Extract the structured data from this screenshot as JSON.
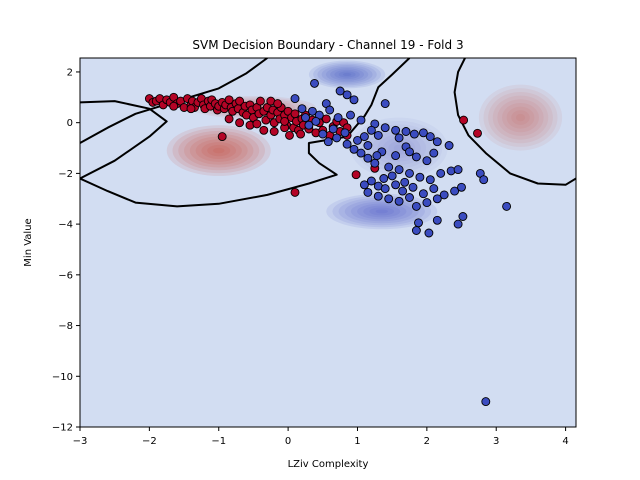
{
  "chart_data": {
    "type": "scatter",
    "title": "SVM Decision Boundary - Channel 19 - Fold 3",
    "xlabel": "LZiv Complexity",
    "ylabel": "Min Value",
    "xlim": [
      -3.0,
      4.15
    ],
    "ylim": [
      -12.0,
      2.55
    ],
    "x_ticks": [
      -3,
      -2,
      -1,
      0,
      1,
      2,
      3,
      4
    ],
    "y_ticks": [
      2,
      0,
      -2,
      -4,
      -6,
      -8,
      -10,
      -12
    ],
    "grid": false,
    "legend": "none",
    "background_color": "#d2ddf2",
    "colors": {
      "class_red": "#b40426",
      "class_blue": "#3b4cc0",
      "marker_edge": "#000000",
      "boundary": "#000000"
    },
    "decision_surface": {
      "red_regions": [
        {
          "cx": -1.0,
          "cy": -1.1,
          "sx": 0.75,
          "sy": 1.0,
          "strength": 0.85
        },
        {
          "cx": -0.5,
          "cy": 0.6,
          "sx": 0.9,
          "sy": 0.45,
          "strength": 0.55
        },
        {
          "cx": 3.35,
          "cy": 0.2,
          "sx": 0.6,
          "sy": 1.3,
          "strength": 0.5
        }
      ],
      "blue_regions": [
        {
          "cx": 0.85,
          "cy": 1.9,
          "sx": 0.55,
          "sy": 0.55,
          "strength": 0.8
        },
        {
          "cx": 1.35,
          "cy": -3.5,
          "sx": 0.8,
          "sy": 0.7,
          "strength": 0.75
        },
        {
          "cx": 1.6,
          "cy": -1.0,
          "sx": 0.7,
          "sy": 1.2,
          "strength": 0.35
        }
      ],
      "boundaries": [
        [
          [
            -3.0,
            -0.8
          ],
          [
            -2.6,
            -0.2
          ],
          [
            -2.2,
            0.35
          ],
          [
            -1.6,
            0.85
          ],
          [
            -1.0,
            1.35
          ],
          [
            -0.6,
            1.95
          ],
          [
            -0.3,
            2.55
          ]
        ],
        [
          [
            -3.0,
            0.8
          ],
          [
            -2.5,
            0.85
          ],
          [
            -2.0,
            0.55
          ],
          [
            -1.75,
            0.05
          ],
          [
            -2.0,
            -0.55
          ],
          [
            -2.5,
            -1.5
          ],
          [
            -3.0,
            -2.2
          ]
        ],
        [
          [
            -3.0,
            -2.2
          ],
          [
            -2.6,
            -2.7
          ],
          [
            -2.2,
            -3.15
          ],
          [
            -1.6,
            -3.3
          ],
          [
            -1.0,
            -3.2
          ],
          [
            -0.3,
            -2.85
          ],
          [
            0.3,
            -2.4
          ],
          [
            0.7,
            -2.05
          ],
          [
            0.45,
            -1.6
          ],
          [
            0.3,
            -1.2
          ],
          [
            0.3,
            -0.8
          ],
          [
            0.85,
            -0.55
          ],
          [
            1.1,
            0.25
          ],
          [
            1.2,
            0.7
          ],
          [
            1.3,
            1.4
          ],
          [
            1.5,
            1.9
          ],
          [
            1.75,
            2.55
          ]
        ],
        [
          [
            2.55,
            2.55
          ],
          [
            2.45,
            2.0
          ],
          [
            2.4,
            1.2
          ],
          [
            2.45,
            0.3
          ],
          [
            2.6,
            -0.5
          ],
          [
            2.85,
            -1.2
          ],
          [
            3.2,
            -2.0
          ],
          [
            3.6,
            -2.4
          ],
          [
            4.0,
            -2.45
          ],
          [
            4.15,
            -2.2
          ]
        ]
      ]
    },
    "series": [
      {
        "class": "red",
        "points": [
          [
            -2.0,
            0.95
          ],
          [
            -1.95,
            0.8
          ],
          [
            -1.9,
            0.85
          ],
          [
            -1.85,
            0.95
          ],
          [
            -1.8,
            0.7
          ],
          [
            -1.75,
            0.9
          ],
          [
            -1.7,
            0.8
          ],
          [
            -1.65,
            1.0
          ],
          [
            -1.6,
            0.75
          ],
          [
            -1.55,
            0.85
          ],
          [
            -1.5,
            0.6
          ],
          [
            -1.45,
            0.95
          ],
          [
            -1.4,
            0.7
          ],
          [
            -1.38,
            0.85
          ],
          [
            -1.35,
            0.6
          ],
          [
            -1.3,
            0.8
          ],
          [
            -1.25,
            0.95
          ],
          [
            -1.22,
            0.7
          ],
          [
            -1.2,
            0.55
          ],
          [
            -1.15,
            0.85
          ],
          [
            -1.12,
            0.65
          ],
          [
            -1.1,
            0.9
          ],
          [
            -1.05,
            0.75
          ],
          [
            -1.02,
            0.5
          ],
          [
            -1.0,
            0.65
          ],
          [
            -0.95,
            0.8
          ],
          [
            -0.92,
            0.55
          ],
          [
            -0.9,
            0.7
          ],
          [
            -0.85,
            0.9
          ],
          [
            -0.82,
            0.6
          ],
          [
            -0.8,
            0.45
          ],
          [
            -0.75,
            0.75
          ],
          [
            -0.72,
            0.55
          ],
          [
            -0.7,
            0.85
          ],
          [
            -0.65,
            0.4
          ],
          [
            -0.62,
            0.65
          ],
          [
            -0.6,
            0.3
          ],
          [
            -0.55,
            0.7
          ],
          [
            -0.52,
            0.5
          ],
          [
            -0.5,
            0.2
          ],
          [
            -0.45,
            0.6
          ],
          [
            -0.42,
            0.35
          ],
          [
            -0.4,
            0.85
          ],
          [
            -0.35,
            0.45
          ],
          [
            -0.32,
            0.1
          ],
          [
            -0.3,
            0.6
          ],
          [
            -0.25,
            0.3
          ],
          [
            -0.22,
            0.5
          ],
          [
            -0.2,
            0.0
          ],
          [
            -0.15,
            0.4
          ],
          [
            -0.12,
            0.15
          ],
          [
            -0.1,
            0.6
          ],
          [
            -0.05,
            0.3
          ],
          [
            -0.02,
            -0.1
          ],
          [
            0.0,
            0.45
          ],
          [
            0.05,
            0.2
          ],
          [
            0.08,
            -0.2
          ],
          [
            0.1,
            0.35
          ],
          [
            0.12,
            0.05
          ],
          [
            0.15,
            -0.3
          ],
          [
            0.2,
            0.15
          ],
          [
            0.22,
            -0.1
          ],
          [
            0.25,
            0.3
          ],
          [
            0.3,
            -0.25
          ],
          [
            0.35,
            0.1
          ],
          [
            0.4,
            -0.4
          ],
          [
            0.45,
            0.0
          ],
          [
            0.5,
            -0.3
          ],
          [
            0.55,
            0.15
          ],
          [
            0.6,
            -0.5
          ],
          [
            0.65,
            -0.15
          ],
          [
            0.7,
            0.05
          ],
          [
            0.75,
            -0.35
          ],
          [
            0.8,
            0.0
          ],
          [
            0.85,
            -0.2
          ],
          [
            -0.85,
            0.15
          ],
          [
            -0.55,
            -0.1
          ],
          [
            -0.35,
            -0.3
          ],
          [
            -0.2,
            -0.35
          ],
          [
            -0.05,
            -0.2
          ],
          [
            -0.7,
            0.0
          ],
          [
            -0.45,
            -0.05
          ],
          [
            -0.25,
            0.85
          ],
          [
            -0.15,
            0.75
          ],
          [
            -1.4,
            0.55
          ],
          [
            -1.65,
            0.65
          ],
          [
            -0.05,
            0.05
          ],
          [
            0.02,
            -0.5
          ],
          [
            0.18,
            -0.45
          ],
          [
            -0.95,
            -0.55
          ],
          [
            0.1,
            -2.75
          ],
          [
            0.85,
            -0.5
          ],
          [
            1.25,
            -1.8
          ],
          [
            0.98,
            -2.05
          ],
          [
            2.53,
            0.1
          ],
          [
            2.73,
            -0.42
          ]
        ]
      },
      {
        "class": "blue",
        "points": [
          [
            0.38,
            1.55
          ],
          [
            0.1,
            0.95
          ],
          [
            0.55,
            0.75
          ],
          [
            0.75,
            1.25
          ],
          [
            0.85,
            1.1
          ],
          [
            0.95,
            0.9
          ],
          [
            1.4,
            0.75
          ],
          [
            0.2,
            0.55
          ],
          [
            0.35,
            0.45
          ],
          [
            0.45,
            0.3
          ],
          [
            0.6,
            0.5
          ],
          [
            0.72,
            0.2
          ],
          [
            0.9,
            0.3
          ],
          [
            1.05,
            0.1
          ],
          [
            1.25,
            -0.05
          ],
          [
            1.4,
            -0.2
          ],
          [
            1.55,
            -0.3
          ],
          [
            1.7,
            -0.35
          ],
          [
            1.82,
            -0.45
          ],
          [
            1.95,
            -0.4
          ],
          [
            2.05,
            -0.55
          ],
          [
            2.15,
            -0.75
          ],
          [
            0.3,
            -0.1
          ],
          [
            0.5,
            -0.45
          ],
          [
            0.7,
            -0.6
          ],
          [
            0.85,
            -0.85
          ],
          [
            1.0,
            -0.7
          ],
          [
            1.15,
            -0.9
          ],
          [
            1.3,
            -0.5
          ],
          [
            1.35,
            -1.15
          ],
          [
            1.55,
            -1.3
          ],
          [
            1.7,
            -0.95
          ],
          [
            1.85,
            -1.35
          ],
          [
            2.0,
            -1.5
          ],
          [
            1.15,
            -1.4
          ],
          [
            1.25,
            -1.6
          ],
          [
            1.45,
            -1.75
          ],
          [
            1.6,
            -1.85
          ],
          [
            1.75,
            -2.0
          ],
          [
            1.9,
            -2.15
          ],
          [
            2.05,
            -2.25
          ],
          [
            2.2,
            -2.0
          ],
          [
            2.35,
            -1.9
          ],
          [
            1.2,
            -2.3
          ],
          [
            1.3,
            -2.5
          ],
          [
            1.4,
            -2.6
          ],
          [
            1.55,
            -2.45
          ],
          [
            1.65,
            -2.7
          ],
          [
            1.8,
            -2.55
          ],
          [
            1.95,
            -2.8
          ],
          [
            2.1,
            -2.6
          ],
          [
            2.25,
            -2.85
          ],
          [
            2.4,
            -2.7
          ],
          [
            2.5,
            -2.55
          ],
          [
            1.3,
            -2.9
          ],
          [
            1.45,
            -3.0
          ],
          [
            1.6,
            -3.1
          ],
          [
            1.75,
            -2.95
          ],
          [
            1.85,
            -3.3
          ],
          [
            2.0,
            -3.15
          ],
          [
            1.15,
            -2.75
          ],
          [
            1.1,
            -2.45
          ],
          [
            1.38,
            -2.2
          ],
          [
            1.5,
            -2.1
          ],
          [
            2.15,
            -3.0
          ],
          [
            2.32,
            -0.9
          ],
          [
            2.45,
            -1.85
          ],
          [
            2.77,
            -2.0
          ],
          [
            2.82,
            -2.25
          ],
          [
            1.88,
            -3.95
          ],
          [
            1.85,
            -4.25
          ],
          [
            2.03,
            -4.35
          ],
          [
            2.15,
            -3.85
          ],
          [
            2.52,
            -3.7
          ],
          [
            2.45,
            -4.0
          ],
          [
            3.15,
            -3.3
          ],
          [
            2.85,
            -11.0
          ],
          [
            1.05,
            -1.2
          ],
          [
            0.95,
            -1.05
          ],
          [
            1.2,
            -0.3
          ],
          [
            1.1,
            -0.55
          ],
          [
            1.6,
            -0.6
          ],
          [
            1.75,
            -1.15
          ],
          [
            2.1,
            -1.2
          ],
          [
            0.25,
            0.2
          ],
          [
            0.4,
            0.05
          ],
          [
            0.65,
            -0.25
          ],
          [
            0.58,
            -0.75
          ],
          [
            0.82,
            -0.4
          ],
          [
            1.28,
            -1.3
          ],
          [
            1.68,
            -2.35
          ]
        ]
      }
    ]
  }
}
